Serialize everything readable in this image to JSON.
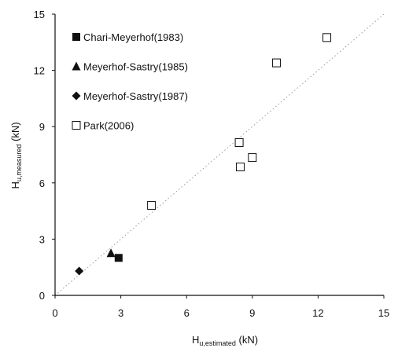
{
  "chart_data": {
    "type": "scatter",
    "title": "",
    "xlabel": {
      "main": "H",
      "sub": "u,estimated",
      "unit": " (kN)"
    },
    "ylabel": {
      "main": "H",
      "sub": "u,measured",
      "unit": " (kN)"
    },
    "xlim": [
      0,
      15
    ],
    "ylim": [
      0,
      15
    ],
    "xticks": [
      "0",
      "3",
      "6",
      "9",
      "12",
      "15"
    ],
    "yticks": [
      "0",
      "3",
      "6",
      "9",
      "12",
      "15"
    ],
    "grid": false,
    "legend_position": "top-left",
    "reference_line": {
      "style": "dotted",
      "from": [
        0,
        0
      ],
      "to": [
        15,
        15
      ]
    },
    "series": [
      {
        "name": "Chari-Meyerhof(1983)",
        "marker": "square-filled",
        "color": "#111111",
        "points": [
          [
            2.9,
            2.0
          ]
        ]
      },
      {
        "name": "Meyerhof-Sastry(1985)",
        "marker": "triangle-filled",
        "color": "#111111",
        "points": [
          [
            2.55,
            2.25
          ]
        ]
      },
      {
        "name": "Meyerhof-Sastry(1987)",
        "marker": "diamond-filled",
        "color": "#111111",
        "points": [
          [
            1.1,
            1.3
          ]
        ]
      },
      {
        "name": "Park(2006)",
        "marker": "square-open",
        "color": "#111111",
        "points": [
          [
            4.4,
            4.8
          ],
          [
            8.4,
            8.15
          ],
          [
            8.45,
            6.85
          ],
          [
            9.0,
            7.35
          ],
          [
            10.1,
            12.4
          ],
          [
            12.4,
            13.75
          ]
        ]
      }
    ]
  }
}
